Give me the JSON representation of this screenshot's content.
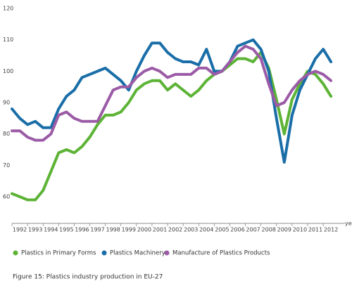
{
  "chart_data": {
    "type": "line",
    "x_label": "ye",
    "caption": "Figure 15: Plastics industry production in EU-27",
    "x": [
      1991.5,
      1992,
      1992.5,
      1993,
      1993.5,
      1994,
      1994.5,
      1995,
      1995.5,
      1996,
      1996.5,
      1997,
      1997.5,
      1998,
      1998.5,
      1999,
      1999.5,
      2000,
      2000.5,
      2001,
      2001.5,
      2002,
      2002.5,
      2003,
      2003.5,
      2004,
      2004.5,
      2005,
      2005.5,
      2006,
      2006.5,
      2007,
      2007.5,
      2008,
      2008.5,
      2009,
      2009.5,
      2010,
      2010.5,
      2011,
      2011.5,
      2012
    ],
    "series": [
      {
        "name": "Plastics in Primary Forms",
        "color": "#5cb335",
        "values": [
          61,
          60,
          59,
          59,
          62,
          68,
          74,
          75,
          74,
          76,
          79,
          83,
          86,
          86,
          87,
          90,
          94,
          96,
          97,
          97,
          94,
          96,
          94,
          92,
          94,
          97,
          99,
          100,
          102,
          104,
          104,
          103,
          106,
          101,
          91,
          80,
          91,
          96,
          100,
          99,
          96,
          92
        ]
      },
      {
        "name": "Plastics Machinery",
        "color": "#1a6ea8",
        "values": [
          88,
          85,
          83,
          84,
          82,
          82,
          88,
          92,
          94,
          98,
          99,
          100,
          101,
          99,
          97,
          94,
          100,
          105,
          109,
          109,
          106,
          104,
          103,
          103,
          102,
          107,
          100,
          100,
          103,
          108,
          109,
          110,
          107,
          100,
          85,
          71,
          86,
          94,
          99,
          104,
          107,
          103
        ]
      },
      {
        "name": "Manufacture of Plastics Products",
        "color": "#9b5ba6",
        "values": [
          81,
          81,
          79,
          78,
          78,
          80,
          86,
          87,
          85,
          84,
          84,
          84,
          89,
          94,
          95,
          95,
          98,
          100,
          101,
          100,
          98,
          99,
          99,
          99,
          101,
          101,
          99,
          100,
          103,
          106,
          108,
          107,
          104,
          96,
          89,
          90,
          94,
          97,
          99,
          100,
          99,
          97
        ]
      }
    ],
    "xlim": [
      1991.5,
      2012.9
    ],
    "xticks": [
      1992,
      1993,
      1994,
      1995,
      1996,
      1997,
      1998,
      1999,
      2000,
      2001,
      2002,
      2003,
      2004,
      2005,
      2006,
      2007,
      2008,
      2009,
      2010,
      2011,
      2012
    ],
    "ylim": [
      51.5,
      122.7
    ],
    "yticks": [
      60,
      70,
      80,
      90,
      100,
      110,
      120
    ],
    "grid": false
  }
}
